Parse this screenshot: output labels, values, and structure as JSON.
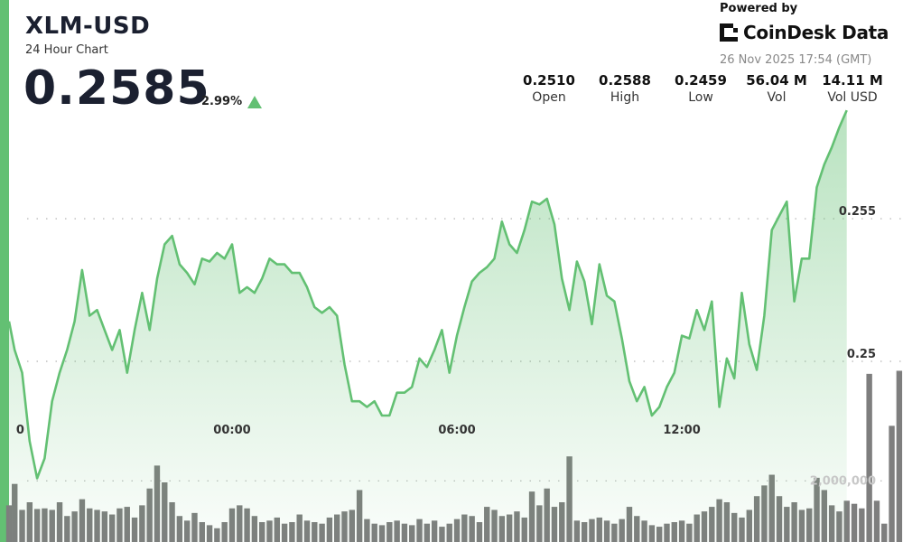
{
  "header": {
    "symbol": "XLM-USD",
    "subtitle": "24 Hour Chart",
    "price": "0.2585",
    "change": "2.99%",
    "change_direction": "up",
    "accent_color": "#63c073"
  },
  "branding": {
    "powered_by": "Powered by",
    "brand_name": "CoinDesk Data",
    "logo_icon": "coindesk-logo-icon",
    "timestamp": "26 Nov 2025 17:54 (GMT)"
  },
  "stats": [
    {
      "value": "0.2510",
      "label": "Open"
    },
    {
      "value": "0.2588",
      "label": "High"
    },
    {
      "value": "0.2459",
      "label": "Low"
    },
    {
      "value": "56.04 M",
      "label": "Vol"
    },
    {
      "value": "14.11 M",
      "label": "Vol USD"
    }
  ],
  "chart_data": {
    "type": "area",
    "x_tick_labels": [
      "0",
      "00:00",
      "06:00",
      "12:00"
    ],
    "x_tick_hours": [
      -5.65,
      0,
      6,
      12
    ],
    "x_range_hours": [
      -5.95,
      17.9
    ],
    "y_tick_labels": [
      "0.255",
      "0.25"
    ],
    "y_tick_values": [
      0.255,
      0.25
    ],
    "ylim": [
      0.2443,
      0.2595
    ],
    "volume_tick_labels": [
      "2,000,000"
    ],
    "volume_tick_values": [
      2000000
    ],
    "volume_ylim": [
      0,
      6500000
    ],
    "grid": "dotted horizontal",
    "price_series": [
      [
        -5.95,
        0.2514
      ],
      [
        -5.8,
        0.2504
      ],
      [
        -5.6,
        0.2496
      ],
      [
        -5.4,
        0.2472
      ],
      [
        -5.2,
        0.2459
      ],
      [
        -5.0,
        0.2466
      ],
      [
        -4.8,
        0.2486
      ],
      [
        -4.6,
        0.2496
      ],
      [
        -4.4,
        0.2504
      ],
      [
        -4.2,
        0.2514
      ],
      [
        -4.0,
        0.2532
      ],
      [
        -3.8,
        0.2516
      ],
      [
        -3.6,
        0.2518
      ],
      [
        -3.4,
        0.2511
      ],
      [
        -3.2,
        0.2504
      ],
      [
        -3.0,
        0.2511
      ],
      [
        -2.8,
        0.2496
      ],
      [
        -2.6,
        0.2511
      ],
      [
        -2.4,
        0.2524
      ],
      [
        -2.2,
        0.2511
      ],
      [
        -2.0,
        0.2529
      ],
      [
        -1.8,
        0.2541
      ],
      [
        -1.6,
        0.2544
      ],
      [
        -1.4,
        0.2534
      ],
      [
        -1.2,
        0.2531
      ],
      [
        -1.0,
        0.2527
      ],
      [
        -0.8,
        0.2536
      ],
      [
        -0.6,
        0.2535
      ],
      [
        -0.4,
        0.2538
      ],
      [
        -0.2,
        0.2536
      ],
      [
        0.0,
        0.2541
      ],
      [
        0.2,
        0.2524
      ],
      [
        0.4,
        0.2526
      ],
      [
        0.6,
        0.2524
      ],
      [
        0.8,
        0.2529
      ],
      [
        1.0,
        0.2536
      ],
      [
        1.2,
        0.2534
      ],
      [
        1.4,
        0.2534
      ],
      [
        1.6,
        0.2531
      ],
      [
        1.8,
        0.2531
      ],
      [
        2.0,
        0.2526
      ],
      [
        2.2,
        0.2519
      ],
      [
        2.4,
        0.2517
      ],
      [
        2.6,
        0.2519
      ],
      [
        2.8,
        0.2516
      ],
      [
        3.0,
        0.2499
      ],
      [
        3.2,
        0.2486
      ],
      [
        3.4,
        0.2486
      ],
      [
        3.6,
        0.2484
      ],
      [
        3.8,
        0.2486
      ],
      [
        4.0,
        0.2481
      ],
      [
        4.2,
        0.2481
      ],
      [
        4.4,
        0.2489
      ],
      [
        4.6,
        0.2489
      ],
      [
        4.8,
        0.2491
      ],
      [
        5.0,
        0.2501
      ],
      [
        5.2,
        0.2498
      ],
      [
        5.4,
        0.2504
      ],
      [
        5.6,
        0.2511
      ],
      [
        5.8,
        0.2496
      ],
      [
        6.0,
        0.2509
      ],
      [
        6.2,
        0.2519
      ],
      [
        6.4,
        0.2528
      ],
      [
        6.6,
        0.2531
      ],
      [
        6.8,
        0.2533
      ],
      [
        7.0,
        0.2536
      ],
      [
        7.2,
        0.2549
      ],
      [
        7.4,
        0.2541
      ],
      [
        7.6,
        0.2538
      ],
      [
        7.8,
        0.2546
      ],
      [
        8.0,
        0.2556
      ],
      [
        8.2,
        0.2555
      ],
      [
        8.4,
        0.2557
      ],
      [
        8.6,
        0.2548
      ],
      [
        8.8,
        0.2529
      ],
      [
        9.0,
        0.2518
      ],
      [
        9.2,
        0.2535
      ],
      [
        9.4,
        0.2528
      ],
      [
        9.6,
        0.2513
      ],
      [
        9.8,
        0.2534
      ],
      [
        10.0,
        0.2523
      ],
      [
        10.2,
        0.2521
      ],
      [
        10.4,
        0.2508
      ],
      [
        10.6,
        0.2493
      ],
      [
        10.8,
        0.2486
      ],
      [
        11.0,
        0.2491
      ],
      [
        11.2,
        0.2481
      ],
      [
        11.4,
        0.2484
      ],
      [
        11.6,
        0.2491
      ],
      [
        11.8,
        0.2496
      ],
      [
        12.0,
        0.2509
      ],
      [
        12.2,
        0.2508
      ],
      [
        12.4,
        0.2518
      ],
      [
        12.6,
        0.2511
      ],
      [
        12.8,
        0.2521
      ],
      [
        13.0,
        0.2484
      ],
      [
        13.2,
        0.2501
      ],
      [
        13.4,
        0.2494
      ],
      [
        13.6,
        0.2524
      ],
      [
        13.8,
        0.2506
      ],
      [
        14.0,
        0.2497
      ],
      [
        14.2,
        0.2516
      ],
      [
        14.4,
        0.2546
      ],
      [
        14.6,
        0.2551
      ],
      [
        14.8,
        0.2556
      ],
      [
        15.0,
        0.2521
      ],
      [
        15.2,
        0.2536
      ],
      [
        15.4,
        0.2536
      ],
      [
        15.6,
        0.2561
      ],
      [
        15.8,
        0.2569
      ],
      [
        16.0,
        0.2575
      ],
      [
        16.2,
        0.2582
      ],
      [
        16.4,
        0.2588
      ]
    ],
    "volume_series": [
      [
        -5.95,
        1200000
      ],
      [
        -5.8,
        1900000
      ],
      [
        -5.6,
        1050000
      ],
      [
        -5.4,
        1300000
      ],
      [
        -5.2,
        1080000
      ],
      [
        -5.0,
        1100000
      ],
      [
        -4.8,
        1050000
      ],
      [
        -4.6,
        1300000
      ],
      [
        -4.4,
        850000
      ],
      [
        -4.2,
        1000000
      ],
      [
        -4.0,
        1400000
      ],
      [
        -3.8,
        1100000
      ],
      [
        -3.6,
        1050000
      ],
      [
        -3.4,
        1000000
      ],
      [
        -3.2,
        900000
      ],
      [
        -3.0,
        1100000
      ],
      [
        -2.8,
        1150000
      ],
      [
        -2.6,
        800000
      ],
      [
        -2.4,
        1200000
      ],
      [
        -2.2,
        1750000
      ],
      [
        -2.0,
        2500000
      ],
      [
        -1.8,
        1950000
      ],
      [
        -1.6,
        1300000
      ],
      [
        -1.4,
        850000
      ],
      [
        -1.2,
        700000
      ],
      [
        -1.0,
        950000
      ],
      [
        -0.8,
        650000
      ],
      [
        -0.6,
        550000
      ],
      [
        -0.4,
        450000
      ],
      [
        -0.2,
        650000
      ],
      [
        0.0,
        1100000
      ],
      [
        0.2,
        1200000
      ],
      [
        0.4,
        1100000
      ],
      [
        0.6,
        850000
      ],
      [
        0.8,
        650000
      ],
      [
        1.0,
        700000
      ],
      [
        1.2,
        800000
      ],
      [
        1.4,
        600000
      ],
      [
        1.6,
        650000
      ],
      [
        1.8,
        900000
      ],
      [
        2.0,
        700000
      ],
      [
        2.2,
        650000
      ],
      [
        2.4,
        600000
      ],
      [
        2.6,
        800000
      ],
      [
        2.8,
        900000
      ],
      [
        3.0,
        1000000
      ],
      [
        3.2,
        1050000
      ],
      [
        3.4,
        1700000
      ],
      [
        3.6,
        750000
      ],
      [
        3.8,
        600000
      ],
      [
        4.0,
        550000
      ],
      [
        4.2,
        650000
      ],
      [
        4.4,
        700000
      ],
      [
        4.6,
        600000
      ],
      [
        4.8,
        550000
      ],
      [
        5.0,
        750000
      ],
      [
        5.2,
        600000
      ],
      [
        5.4,
        700000
      ],
      [
        5.6,
        500000
      ],
      [
        5.8,
        600000
      ],
      [
        6.0,
        750000
      ],
      [
        6.2,
        900000
      ],
      [
        6.4,
        850000
      ],
      [
        6.6,
        650000
      ],
      [
        6.8,
        1150000
      ],
      [
        7.0,
        1050000
      ],
      [
        7.2,
        850000
      ],
      [
        7.4,
        900000
      ],
      [
        7.6,
        1000000
      ],
      [
        7.8,
        800000
      ],
      [
        8.0,
        1650000
      ],
      [
        8.2,
        1200000
      ],
      [
        8.4,
        1750000
      ],
      [
        8.6,
        1150000
      ],
      [
        8.8,
        1300000
      ],
      [
        9.0,
        2800000
      ],
      [
        9.2,
        700000
      ],
      [
        9.4,
        650000
      ],
      [
        9.6,
        750000
      ],
      [
        9.8,
        800000
      ],
      [
        10.0,
        700000
      ],
      [
        10.2,
        600000
      ],
      [
        10.4,
        750000
      ],
      [
        10.6,
        1150000
      ],
      [
        10.8,
        850000
      ],
      [
        11.0,
        700000
      ],
      [
        11.2,
        550000
      ],
      [
        11.4,
        500000
      ],
      [
        11.6,
        600000
      ],
      [
        11.8,
        650000
      ],
      [
        12.0,
        700000
      ],
      [
        12.2,
        600000
      ],
      [
        12.4,
        900000
      ],
      [
        12.6,
        1000000
      ],
      [
        12.8,
        1150000
      ],
      [
        13.0,
        1400000
      ],
      [
        13.2,
        1300000
      ],
      [
        13.4,
        950000
      ],
      [
        13.6,
        800000
      ],
      [
        13.8,
        1050000
      ],
      [
        14.0,
        1500000
      ],
      [
        14.2,
        1850000
      ],
      [
        14.4,
        2200000
      ],
      [
        14.6,
        1500000
      ],
      [
        14.8,
        1150000
      ],
      [
        15.0,
        1300000
      ],
      [
        15.2,
        1050000
      ],
      [
        15.4,
        1100000
      ],
      [
        15.6,
        2100000
      ],
      [
        15.8,
        1700000
      ],
      [
        16.0,
        1200000
      ],
      [
        16.2,
        1000000
      ],
      [
        16.4,
        1350000
      ],
      [
        16.6,
        1250000
      ],
      [
        16.8,
        1100000
      ],
      [
        17.0,
        5500000
      ],
      [
        17.2,
        1350000
      ],
      [
        17.4,
        600000
      ],
      [
        17.6,
        3800000
      ],
      [
        17.8,
        5600000
      ]
    ]
  }
}
